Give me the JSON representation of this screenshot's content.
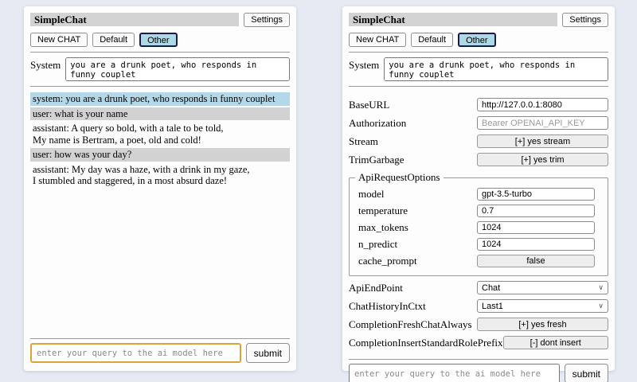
{
  "colors": {
    "page_bg": "#e7eaf2",
    "panel_bg": "#fdfdfd",
    "title_bar_bg": "#d3d3d3",
    "selected_session_bg": "#add8e6",
    "selected_session_border": "#1b1b4a",
    "system_msg_bg": "#b4d8e7",
    "user_msg_bg": "#d2d2d2",
    "query_focus_border": "#dba33a",
    "control_bg": "#ededed"
  },
  "icons": {
    "chevron_down": "∨"
  },
  "left": {
    "title": "SimpleChat",
    "settings_button": "Settings",
    "sessions": [
      "New CHAT",
      "Default",
      "Other"
    ],
    "system_label": "System",
    "system_prompt": "you are a drunk poet, who responds in funny couplet",
    "messages": [
      {
        "role": "system",
        "text": "system: you are a drunk poet, who responds in funny couplet"
      },
      {
        "role": "user",
        "text": "user: what is your name"
      },
      {
        "role": "assistant",
        "text": "assistant: A query so bold, with a tale to be told,\nMy name is Bertram, a poet, old and cold!"
      },
      {
        "role": "user",
        "text": "user: how was your day?"
      },
      {
        "role": "assistant",
        "text": "assistant: My day was a haze, with a drink in my gaze,\nI stumbled and staggered, in a most absurd daze!"
      }
    ],
    "query_placeholder": "enter your query to the ai model here",
    "submit_label": "submit"
  },
  "right": {
    "title": "SimpleChat",
    "settings_button": "Settings",
    "sessions": [
      "New CHAT",
      "Default",
      "Other"
    ],
    "system_label": "System",
    "system_prompt": "you are a drunk poet, who responds in funny couplet",
    "settings": {
      "base_url": {
        "label": "BaseURL",
        "value": "http://127.0.0.1:8080"
      },
      "authorization": {
        "label": "Authorization",
        "placeholder": "Bearer OPENAI_API_KEY"
      },
      "stream": {
        "label": "Stream",
        "button_label": "[+] yes stream"
      },
      "trim_garbage": {
        "label": "TrimGarbage",
        "button_label": "[+] yes trim"
      },
      "api_request_options": {
        "legend": "ApiRequestOptions",
        "model": {
          "label": "model",
          "value": "gpt-3.5-turbo"
        },
        "temperature": {
          "label": "temperature",
          "value": "0.7"
        },
        "max_tokens": {
          "label": "max_tokens",
          "value": "1024"
        },
        "n_predict": {
          "label": "n_predict",
          "value": "1024"
        },
        "cache_prompt": {
          "label": "cache_prompt",
          "button_label": "false"
        }
      },
      "api_endpoint": {
        "label": "ApiEndPoint",
        "selected": "Chat"
      },
      "chat_history_in_ctxt": {
        "label": "ChatHistoryInCtxt",
        "selected": "Last1"
      },
      "completion_fresh_chat_always": {
        "label": "CompletionFreshChatAlways",
        "button_label": "[+] yes fresh"
      },
      "completion_insert_standard_role_prefix": {
        "label": "CompletionInsertStandardRolePrefix",
        "button_label": "[-] dont insert"
      }
    },
    "query_placeholder": "enter your query to the ai model here",
    "submit_label": "submit"
  }
}
